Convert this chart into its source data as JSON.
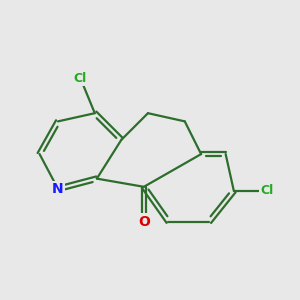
{
  "bg_color": "#e8e8e8",
  "bond_color": "#2d6e2d",
  "bond_width": 1.6,
  "atom_colors": {
    "N": "#1a1aff",
    "O": "#dd0000",
    "Cl": "#22aa22"
  },
  "font_size_atoms": 10,
  "font_size_cl": 9,
  "figsize": [
    3.0,
    3.0
  ],
  "dpi": 100
}
